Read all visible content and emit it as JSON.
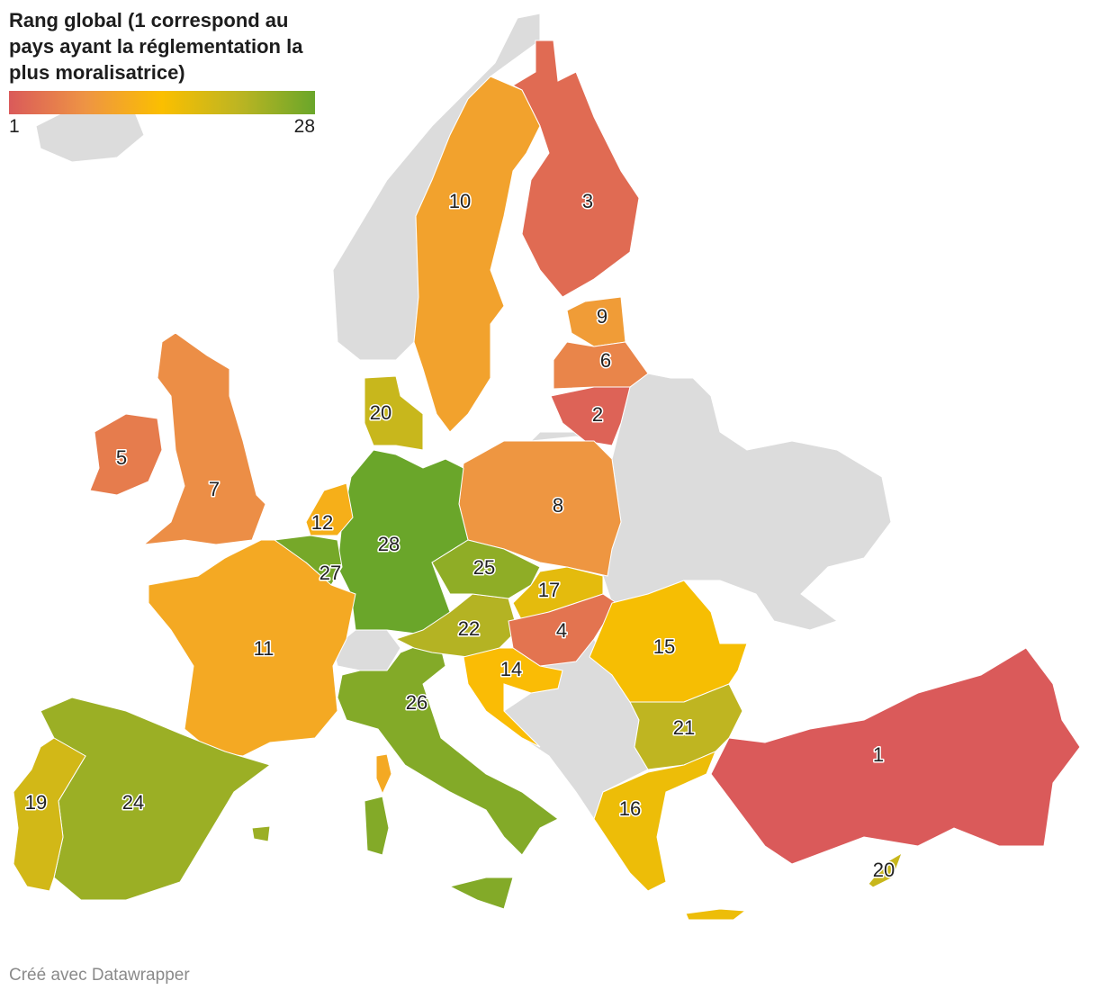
{
  "legend": {
    "title": "Rang global (1 correspond au pays ayant la réglementation la plus moralisatrice)",
    "min": 1,
    "max": 28,
    "colors": [
      "#da5a5a",
      "#ee9444",
      "#fbbf00",
      "#bdb522",
      "#6aa62a"
    ]
  },
  "regions": [
    {
      "value": 3
    },
    {
      "value": 10
    },
    {
      "value": 9
    },
    {
      "value": 6
    },
    {
      "value": 2
    },
    {
      "value": 8
    },
    {
      "value": 28
    },
    {
      "value": 20
    },
    {
      "value": 12
    },
    {
      "value": 27
    },
    {
      "value": 11
    },
    {
      "value": 7
    },
    {
      "value": 5
    },
    {
      "value": 24
    },
    {
      "value": 19
    },
    {
      "value": 26
    },
    {
      "value": 22
    },
    {
      "value": 25
    },
    {
      "value": 17
    },
    {
      "value": 4
    },
    {
      "value": 14
    },
    {
      "value": 15
    },
    {
      "value": 21
    },
    {
      "value": 16
    },
    {
      "value": 1
    },
    {
      "value": 20
    }
  ],
  "footer": "Créé avec Datawrapper"
}
